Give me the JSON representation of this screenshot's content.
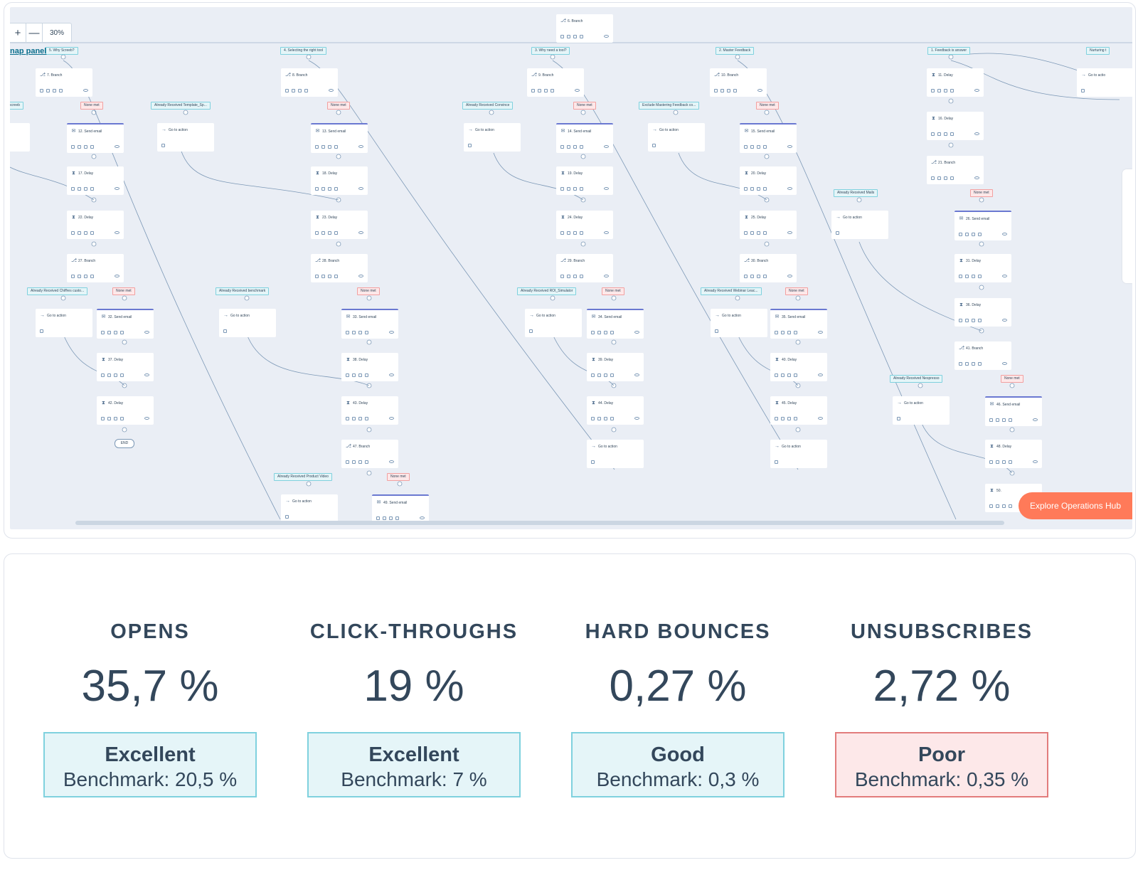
{
  "workflow": {
    "zoom": {
      "plus": "+",
      "minus": "—",
      "value": "30%"
    },
    "map_panel_link": "nap panel",
    "explore_button": "Explore Operations Hub",
    "end_label": "END",
    "nodes": [
      {
        "label": "6. Branch",
        "icon": "branch"
      },
      {
        "label": "7. Branch",
        "icon": "branch"
      },
      {
        "label": "8. Branch",
        "icon": "branch"
      },
      {
        "label": "9. Branch",
        "icon": "branch"
      },
      {
        "label": "10. Branch",
        "icon": "branch"
      },
      {
        "label": "11. Delay",
        "icon": "delay"
      },
      {
        "label": "Go to action",
        "icon": "arrow"
      },
      {
        "label": "12. Send email",
        "icon": "email"
      },
      {
        "label": "Go to action",
        "icon": "arrow"
      },
      {
        "label": "13. Send email",
        "icon": "email"
      },
      {
        "label": "Go to action",
        "icon": "arrow"
      },
      {
        "label": "14. Send email",
        "icon": "email"
      },
      {
        "label": "Go to action",
        "icon": "arrow"
      },
      {
        "label": "15. Send email",
        "icon": "email"
      },
      {
        "label": "16. Delay",
        "icon": "delay"
      },
      {
        "label": "21. Branch",
        "icon": "branch"
      },
      {
        "label": "17. Delay",
        "icon": "delay"
      },
      {
        "label": "18. Delay",
        "icon": "delay"
      },
      {
        "label": "19. Delay",
        "icon": "delay"
      },
      {
        "label": "20. Delay",
        "icon": "delay"
      },
      {
        "label": "Go to action",
        "icon": "arrow"
      },
      {
        "label": "26. Send email",
        "icon": "email"
      },
      {
        "label": "22. Delay",
        "icon": "delay"
      },
      {
        "label": "23. Delay",
        "icon": "delay"
      },
      {
        "label": "24. Delay",
        "icon": "delay"
      },
      {
        "label": "25. Delay",
        "icon": "delay"
      },
      {
        "label": "27. Branch",
        "icon": "branch"
      },
      {
        "label": "28. Branch",
        "icon": "branch"
      },
      {
        "label": "29. Branch",
        "icon": "branch"
      },
      {
        "label": "30. Branch",
        "icon": "branch"
      },
      {
        "label": "31. Delay",
        "icon": "delay"
      },
      {
        "label": "36. Delay",
        "icon": "delay"
      },
      {
        "label": "Go to action",
        "icon": "arrow"
      },
      {
        "label": "32. Send email",
        "icon": "email"
      },
      {
        "label": "Go to action",
        "icon": "arrow"
      },
      {
        "label": "33. Send email",
        "icon": "email"
      },
      {
        "label": "Go to action",
        "icon": "arrow"
      },
      {
        "label": "34. Send email",
        "icon": "email"
      },
      {
        "label": "Go to action",
        "icon": "arrow"
      },
      {
        "label": "35. Send email",
        "icon": "email"
      },
      {
        "label": "41. Branch",
        "icon": "branch"
      },
      {
        "label": "37. Delay",
        "icon": "delay"
      },
      {
        "label": "38. Delay",
        "icon": "delay"
      },
      {
        "label": "39. Delay",
        "icon": "delay"
      },
      {
        "label": "40. Delay",
        "icon": "delay"
      },
      {
        "label": "42. Delay",
        "icon": "delay"
      },
      {
        "label": "43. Delay",
        "icon": "delay"
      },
      {
        "label": "44. Delay",
        "icon": "delay"
      },
      {
        "label": "45. Delay",
        "icon": "delay"
      },
      {
        "label": "Go to action",
        "icon": "arrow"
      },
      {
        "label": "46. Send email",
        "icon": "email"
      },
      {
        "label": "47. Branch",
        "icon": "branch"
      },
      {
        "label": "Go to action",
        "icon": "arrow"
      },
      {
        "label": "Go to action",
        "icon": "arrow"
      },
      {
        "label": "48. Delay",
        "icon": "delay"
      },
      {
        "label": "Go to action",
        "icon": "arrow"
      },
      {
        "label": "49. Send email",
        "icon": "email"
      },
      {
        "label": "50.",
        "icon": "delay"
      },
      {
        "label": "Go to actio",
        "icon": "arrow"
      }
    ],
    "tags": [
      {
        "label": "5. Why Screeb?",
        "kind": "ok"
      },
      {
        "label": "4. Selecting the right tool",
        "kind": "ok"
      },
      {
        "label": "3. Why need a tool?",
        "kind": "ok"
      },
      {
        "label": "2. Master Feedback",
        "kind": "ok"
      },
      {
        "label": "1. Feedback is answer",
        "kind": "ok"
      },
      {
        "label": "Nurturing t",
        "kind": "ok"
      },
      {
        "label": "screeb",
        "kind": "ok"
      },
      {
        "label": "None met",
        "kind": "none"
      },
      {
        "label": "Already Received Template_Sp...",
        "kind": "ok"
      },
      {
        "label": "None met",
        "kind": "none"
      },
      {
        "label": "Already Received Convince",
        "kind": "ok"
      },
      {
        "label": "None met",
        "kind": "none"
      },
      {
        "label": "Exclude Mastering Feedback co...",
        "kind": "ok"
      },
      {
        "label": "None met",
        "kind": "none"
      },
      {
        "label": "Already Received Mails",
        "kind": "ok"
      },
      {
        "label": "None met",
        "kind": "none"
      },
      {
        "label": "Already Received Chiffres custo...",
        "kind": "ok"
      },
      {
        "label": "None met",
        "kind": "none"
      },
      {
        "label": "Already Received benchmark",
        "kind": "ok"
      },
      {
        "label": "None met",
        "kind": "none"
      },
      {
        "label": "Already Received ROI_Simulator",
        "kind": "ok"
      },
      {
        "label": "None met",
        "kind": "none"
      },
      {
        "label": "Already Received Webinar Leac...",
        "kind": "ok"
      },
      {
        "label": "None met",
        "kind": "none"
      },
      {
        "label": "Already Received Nespresso",
        "kind": "ok"
      },
      {
        "label": "None met",
        "kind": "none"
      },
      {
        "label": "Already Received Product Video",
        "kind": "ok"
      },
      {
        "label": "None met",
        "kind": "none"
      }
    ]
  },
  "metrics": [
    {
      "label": "OPENS",
      "value": "35,7 %",
      "rating": "Excellent",
      "benchmark": "Benchmark: 20,5 %",
      "status": "excellent"
    },
    {
      "label": "CLICK-THROUGHS",
      "value": "19 %",
      "rating": "Excellent",
      "benchmark": "Benchmark: 7 %",
      "status": "excellent"
    },
    {
      "label": "HARD BOUNCES",
      "value": "0,27 %",
      "rating": "Good",
      "benchmark": "Benchmark: 0,3 %",
      "status": "good"
    },
    {
      "label": "UNSUBSCRIBES",
      "value": "2,72 %",
      "rating": "Poor",
      "benchmark": "Benchmark: 0,35 %",
      "status": "poor"
    }
  ],
  "colors": {
    "canvas_bg": "#eaeef5",
    "email_accent": "#6a78d1",
    "good_border": "#7fd1de",
    "good_fill": "#e5f5f8",
    "poor_border": "#e27c7c",
    "poor_fill": "#fde8e9",
    "cta": "#ff7a59",
    "text": "#33475b"
  }
}
